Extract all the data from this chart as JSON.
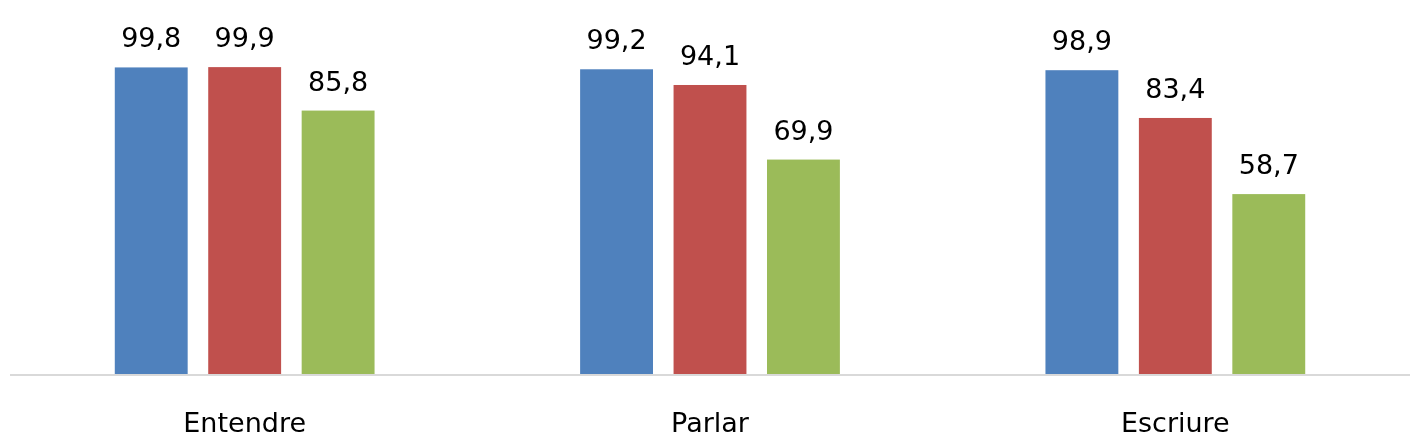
{
  "chart_data": {
    "type": "bar",
    "categories": [
      "Entendre",
      "Parlar",
      "Escriure"
    ],
    "series": [
      {
        "color": "#4f81bd",
        "values": [
          99.8,
          99.2,
          98.9
        ],
        "value_labels": [
          "99,8",
          "99,2",
          "98,9"
        ]
      },
      {
        "color": "#c0504d",
        "values": [
          99.9,
          94.1,
          83.4
        ],
        "value_labels": [
          "99,9",
          "94,1",
          "83,4"
        ]
      },
      {
        "color": "#9bbb59",
        "values": [
          85.8,
          69.9,
          58.7
        ],
        "value_labels": [
          "85,8",
          "69,9",
          "58,7"
        ]
      }
    ]
  }
}
